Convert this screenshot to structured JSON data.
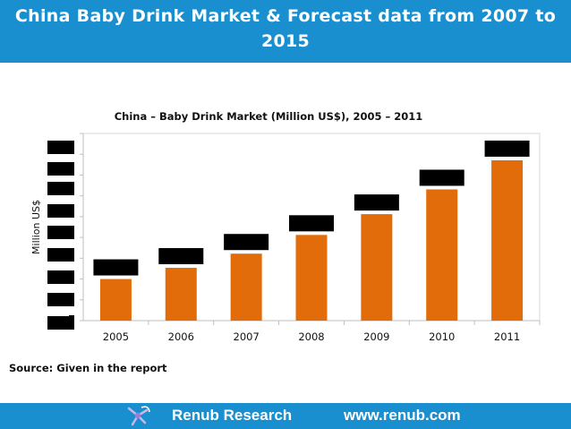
{
  "header": {
    "title": "China Baby Drink Market & Forecast data from  2007 to 2015"
  },
  "chart_data": {
    "type": "bar",
    "title": "China – Baby Drink Market (Million US$), 2005 – 2011",
    "xlabel": "",
    "ylabel": "Million US$",
    "categories": [
      "2005",
      "2006",
      "2007",
      "2008",
      "2009",
      "2010",
      "2011"
    ],
    "values": [
      200,
      254,
      322,
      412,
      512,
      631,
      771
    ],
    "ylim": [
      0,
      900
    ],
    "grid": false,
    "legend": "none",
    "bar_color": "#e36c0a",
    "redaction_color": "#000000"
  },
  "source": {
    "text": "Source: Given in the report"
  },
  "footer": {
    "brand": "Renub Research",
    "url": "www.renub.com"
  },
  "colors": {
    "header_bg": "#1a8fd0",
    "footer_bg": "#1a8fd0",
    "bar": "#e36c0a"
  }
}
